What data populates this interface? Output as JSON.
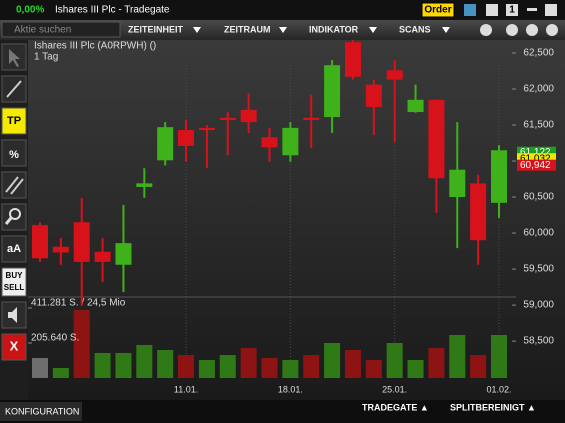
{
  "window": {
    "change": "0,00%",
    "title": "Ishares III Plc - Tradegate",
    "order": "Order",
    "count": "1"
  },
  "search": {
    "placeholder": "Aktie suchen"
  },
  "menu": [
    "ZEITEINHEIT",
    "ZEITRAUM",
    "INDIKATOR",
    "SCANS"
  ],
  "toolbar": {
    "tp": "TP",
    "percent": "%",
    "font": "aA",
    "buy": "BUY",
    "sell": "SELL",
    "close": "X"
  },
  "footer": {
    "left": "KONFIGURATION",
    "exchange": "TRADEGATE ▲",
    "adjust": "SPLITBEREINIGT ▲"
  },
  "chart_data": {
    "type": "candlestick",
    "title": "Ishares III Plc (A0RPWH) ()",
    "subtitle": "1 Tag",
    "categories": [
      null,
      null,
      null,
      null,
      null,
      null,
      null,
      "11.01.",
      null,
      null,
      null,
      null,
      "18.01.",
      null,
      null,
      null,
      null,
      "25.01.",
      null,
      null,
      null,
      null,
      "01.02."
    ],
    "open": [
      60.11,
      59.81,
      60.15,
      59.74,
      59.56,
      60.64,
      61.01,
      61.43,
      61.46,
      61.6,
      61.71,
      61.33,
      61.08,
      61.6,
      61.61,
      62.65,
      62.06,
      62.26,
      61.68,
      61.85,
      60.5,
      60.69,
      60.42
    ],
    "high": [
      60.15,
      59.93,
      60.49,
      59.93,
      60.39,
      60.9,
      61.54,
      61.57,
      61.5,
      61.68,
      61.94,
      61.46,
      61.54,
      61.92,
      62.4,
      62.68,
      62.13,
      62.4,
      62.06,
      61.85,
      61.54,
      60.81,
      61.22
    ],
    "low": [
      59.6,
      59.56,
      59.0,
      59.32,
      59.18,
      60.49,
      60.94,
      60.99,
      60.9,
      61.08,
      61.39,
      60.99,
      60.99,
      61.18,
      61.39,
      62.13,
      61.36,
      61.26,
      61.67,
      60.28,
      59.79,
      59.56,
      60.21
    ],
    "close": [
      59.65,
      59.73,
      59.6,
      59.6,
      59.86,
      60.69,
      61.47,
      61.21,
      61.43,
      61.57,
      61.54,
      61.19,
      61.46,
      61.57,
      62.33,
      62.17,
      61.75,
      62.13,
      61.85,
      60.76,
      60.88,
      59.9,
      61.15
    ],
    "up_color": "#3fb11a",
    "down_color": "#d8121a",
    "ylim": [
      57.96,
      62.68
    ],
    "yticks": [
      {
        "value": 62.5,
        "label": "62,500"
      },
      {
        "value": 62.0,
        "label": "62,000"
      },
      {
        "value": 61.5,
        "label": "61,500"
      },
      {
        "value": 61.0,
        "label": "61,000"
      },
      {
        "value": 60.5,
        "label": "60,500"
      },
      {
        "value": 60.0,
        "label": "60,000"
      },
      {
        "value": 59.5,
        "label": "59,500"
      },
      {
        "value": 59.0,
        "label": "59,000"
      },
      {
        "value": 58.5,
        "label": "58,500"
      }
    ],
    "xgrid": true,
    "volume": {
      "values": [
        117500,
        58750,
        400000,
        147000,
        147000,
        194000,
        164500,
        135000,
        105750,
        135000,
        176000,
        117500,
        105750,
        135000,
        205600,
        164500,
        105750,
        205600,
        105750,
        176000,
        252600,
        135000,
        252600
      ],
      "colors": [
        "#6e6e6e",
        "#2f7a16",
        "#8e1414",
        "#2f7a16",
        "#2f7a16",
        "#2f7a16",
        "#2f7a16",
        "#8e1414",
        "#2f7a16",
        "#2f7a16",
        "#8e1414",
        "#8e1414",
        "#2f7a16",
        "#8e1414",
        "#2f7a16",
        "#8e1414",
        "#8e1414",
        "#2f7a16",
        "#2f7a16",
        "#8e1414",
        "#2f7a16",
        "#8e1414",
        "#2f7a16"
      ],
      "ylim": [
        0,
        458250
      ],
      "yticks": [
        {
          "value": 411281,
          "label": "411.281 S. / 24,5 Mio"
        },
        {
          "value": 205640,
          "label": "205.640 S."
        }
      ]
    },
    "price_labels": [
      {
        "value": 61.122,
        "label": "61,122",
        "color": "#1e9e1e"
      },
      {
        "value": 61.032,
        "label": "61,032",
        "color": "#f2e600"
      },
      {
        "value": 60.942,
        "label": "60,942",
        "color": "#d8121a"
      }
    ]
  }
}
